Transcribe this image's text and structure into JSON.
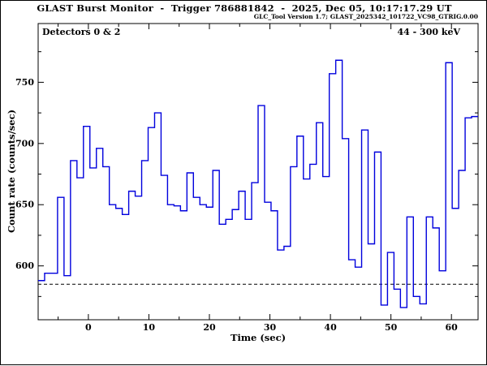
{
  "window": {
    "background": "#ffffff",
    "border_color": "#000000"
  },
  "header": {
    "title": "GLAST Burst Monitor  -  Trigger 786881842  -  2025, Dec 05, 10:17:17.29 UT",
    "subtitle": "GLC_Tool Version 1.7; GLAST_2025342_101722_VC98_GTRIG.0.00"
  },
  "chart_data": {
    "type": "step-histogram light curve",
    "xlabel": "Time (sec)",
    "ylabel": "Count rate (counts/sec)",
    "annotations": {
      "detectors": "Detectors 0 & 2",
      "energy_range": "44 - 300 keV"
    },
    "xlim": [
      -8.3,
      64.4
    ],
    "ylim": [
      556,
      798
    ],
    "x_major_ticks": [
      0,
      10,
      20,
      30,
      40,
      50,
      60
    ],
    "x_minor_ticks": [
      -5,
      5,
      15,
      25,
      35,
      45,
      55
    ],
    "y_major_ticks": [
      600,
      650,
      700,
      750
    ],
    "y_minor_ticks": [
      575,
      625,
      675,
      725,
      775
    ],
    "grid": "off",
    "background_level_dashed": 585,
    "series_color": "#0000dd",
    "axis_color": "#000000",
    "bin_width_sec": 1.07,
    "bins_start_sec": -8.3,
    "counts": [
      588,
      594,
      594,
      656,
      592,
      686,
      672,
      714,
      680,
      696,
      681,
      650,
      647,
      642,
      661,
      657,
      686,
      713,
      725,
      674,
      650,
      649,
      645,
      676,
      656,
      650,
      648,
      678,
      634,
      638,
      646,
      661,
      638,
      668,
      731,
      652,
      645,
      613,
      616,
      681,
      706,
      671,
      683,
      717,
      673,
      757,
      768,
      704,
      605,
      599,
      711,
      618,
      693,
      568,
      611,
      581,
      566,
      640,
      575,
      569,
      640,
      631,
      596,
      766,
      647,
      678,
      721,
      722
    ]
  }
}
